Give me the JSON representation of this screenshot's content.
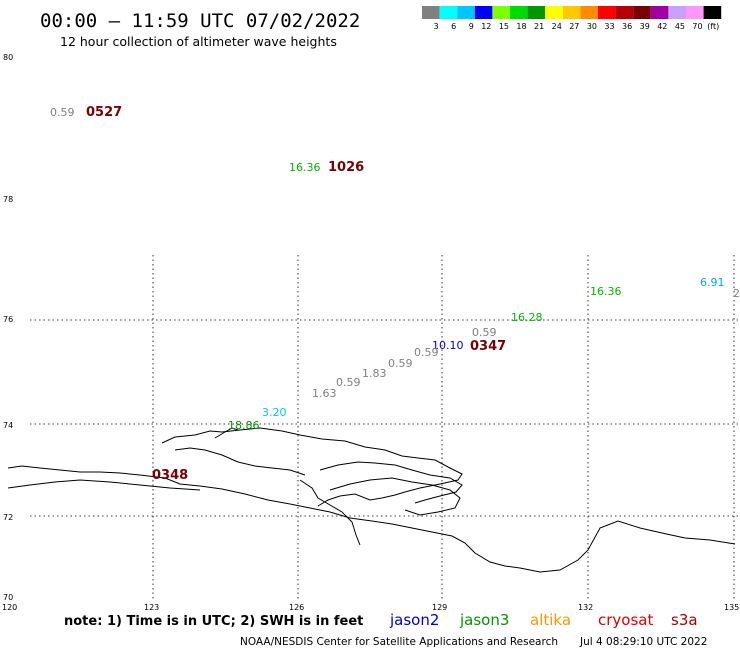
{
  "header": {
    "title": "00:00 – 11:59 UTC 07/02/2022",
    "subtitle": "12 hour collection of altimeter wave heights"
  },
  "legend": {
    "unit": "(ft)",
    "bins": [
      {
        "label": "3",
        "color": "#808080"
      },
      {
        "label": "6",
        "color": "#00ffff"
      },
      {
        "label": "9",
        "color": "#00c8ff"
      },
      {
        "label": "12",
        "color": "#0000ff"
      },
      {
        "label": "15",
        "color": "#7dff00"
      },
      {
        "label": "18",
        "color": "#00dc00"
      },
      {
        "label": "21",
        "color": "#009600"
      },
      {
        "label": "24",
        "color": "#ffff00"
      },
      {
        "label": "27",
        "color": "#ffc800"
      },
      {
        "label": "30",
        "color": "#ff8c00"
      },
      {
        "label": "33",
        "color": "#ff0000"
      },
      {
        "label": "36",
        "color": "#b40000"
      },
      {
        "label": "39",
        "color": "#780000"
      },
      {
        "label": "42",
        "color": "#a000a0"
      },
      {
        "label": "45",
        "color": "#c8a0ff"
      },
      {
        "label": "70",
        "color": "#ff96ff"
      },
      {
        "label": "",
        "color": "#000000"
      }
    ]
  },
  "axes": {
    "lat_labels": [
      "80",
      "78",
      "76",
      "74",
      "72",
      "70"
    ],
    "lon_labels": [
      "120",
      "123",
      "126",
      "129",
      "132",
      "135"
    ]
  },
  "observations": [
    {
      "label": "0.59",
      "color": "#808080"
    },
    {
      "label": "0527",
      "color": "#780000"
    },
    {
      "label": "16.36",
      "color": "#00b400"
    },
    {
      "label": "1026",
      "color": "#780000"
    },
    {
      "label": "16.36",
      "color": "#00b400"
    },
    {
      "label": "6.91",
      "color": "#00aadd"
    },
    {
      "label": "2",
      "color": "#808080"
    },
    {
      "label": "16.28",
      "color": "#00b400"
    },
    {
      "label": "0.59",
      "color": "#808080"
    },
    {
      "label": "10.10",
      "color": "#0000c8"
    },
    {
      "label": "0347",
      "color": "#780000"
    },
    {
      "label": "0.59",
      "color": "#808080"
    },
    {
      "label": "0.59",
      "color": "#808080"
    },
    {
      "label": "1.83",
      "color": "#808080"
    },
    {
      "label": "0.59",
      "color": "#808080"
    },
    {
      "label": "1.63",
      "color": "#808080"
    },
    {
      "label": "3.20",
      "color": "#00c8ff"
    },
    {
      "label": "18.86",
      "color": "#009600"
    },
    {
      "label": "0348",
      "color": "#780000"
    }
  ],
  "footer": {
    "note": "note:  1) Time is in UTC;  2) SWH is in feet",
    "missions": [
      {
        "label": "jason2",
        "color": "#0000cc"
      },
      {
        "label": "jason3",
        "color": "#009600"
      },
      {
        "label": "altika",
        "color": "#ff9600"
      },
      {
        "label": "cryosat",
        "color": "#dd0000"
      },
      {
        "label": "s3a",
        "color": "#aa0000"
      }
    ],
    "credit": "NOAA/NESDIS Center for Satellite Applications and Research",
    "timestamp": "Jul  4 08:29:10 UTC 2022"
  }
}
